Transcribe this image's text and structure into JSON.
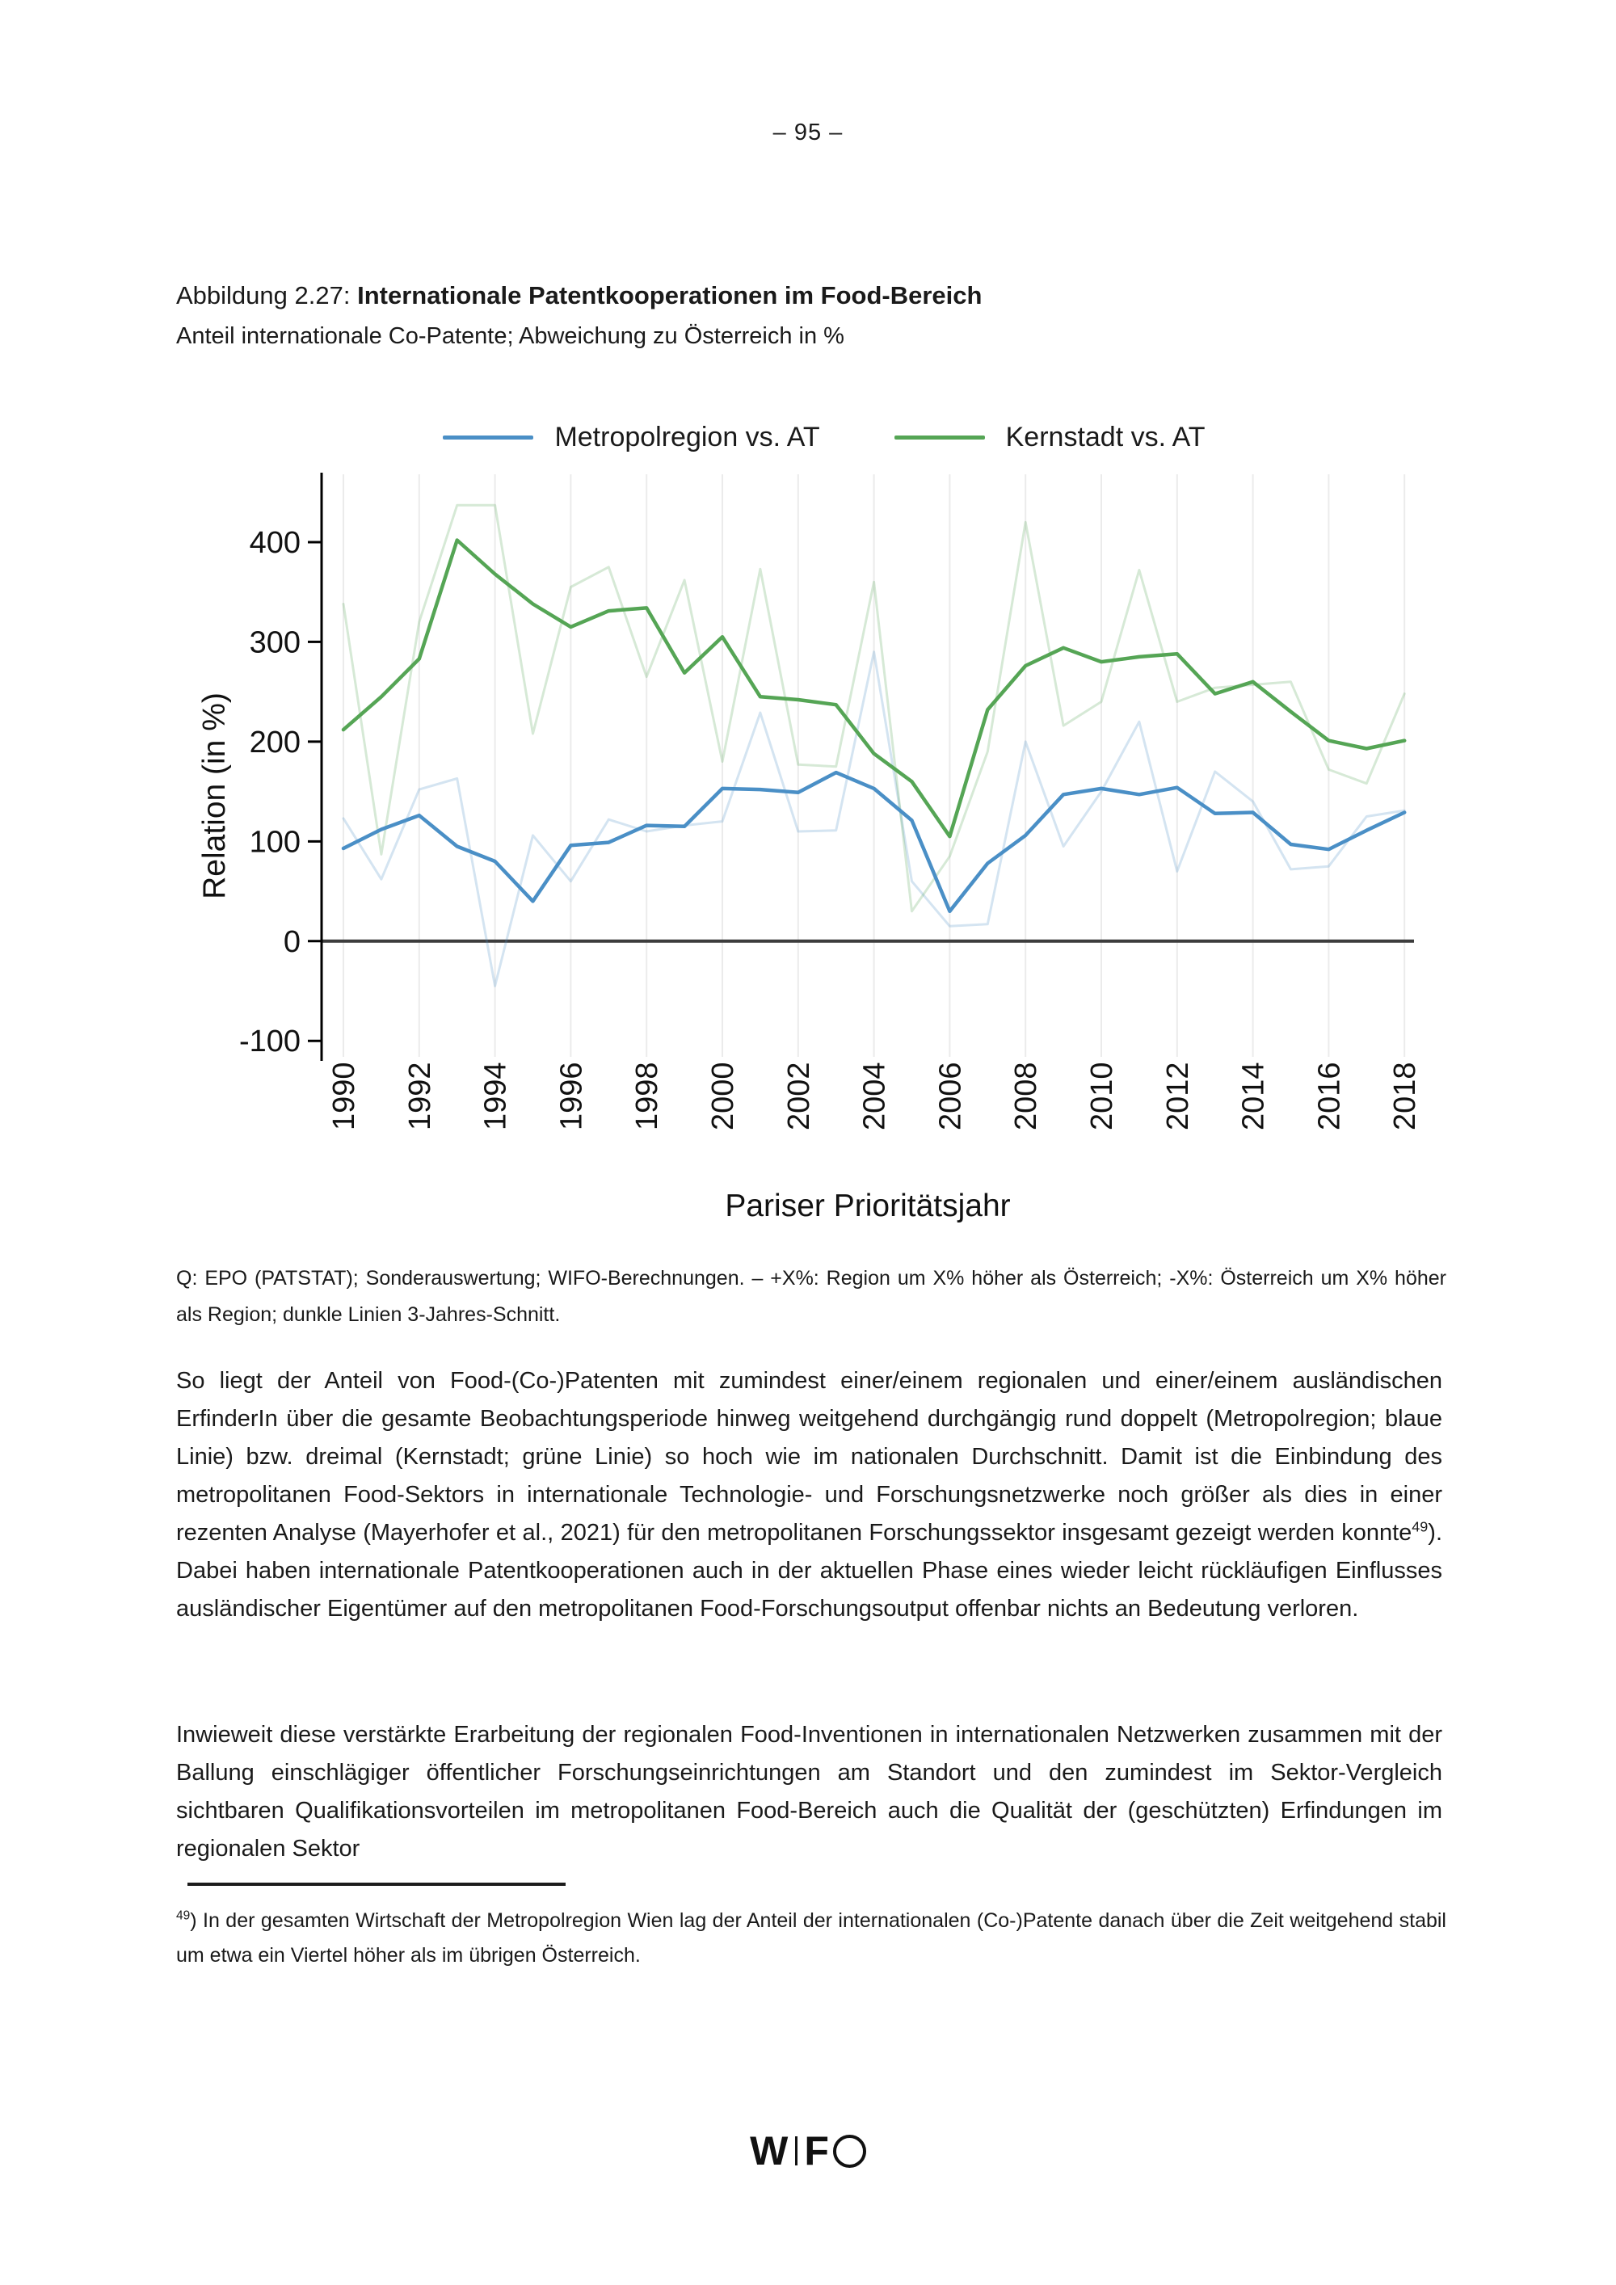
{
  "page": {
    "number_label": "– 95 –"
  },
  "figure": {
    "caption_prefix": "Abbildung 2.27: ",
    "caption_bold": "Internationale Patentkooperationen im Food-Bereich",
    "subtitle": "Anteil internationale Co-Patente; Abweichung zu Österreich in %",
    "source_note": "Q: EPO (PATSTAT); Sonderauswertung; WIFO-Berechnungen. –  +X%: Region um X% höher als Österreich; -X%: Österreich um X% höher als Region; dunkle Linien 3-Jahres-Schnitt."
  },
  "chart_data": {
    "type": "line",
    "title": "",
    "xlabel": "Pariser Prioritätsjahr",
    "ylabel": "Relation (in %)",
    "x": [
      1990,
      1991,
      1992,
      1993,
      1994,
      1995,
      1996,
      1997,
      1998,
      1999,
      2000,
      2001,
      2002,
      2003,
      2004,
      2005,
      2006,
      2007,
      2008,
      2009,
      2010,
      2011,
      2012,
      2013,
      2014,
      2015,
      2016,
      2017,
      2018
    ],
    "x_tick_labels": [
      "1990",
      "1992",
      "1994",
      "1996",
      "1998",
      "2000",
      "2002",
      "2004",
      "2006",
      "2008",
      "2010",
      "2012",
      "2014",
      "2016",
      "2018"
    ],
    "yticks": [
      -100,
      0,
      100,
      200,
      300,
      400
    ],
    "ylim": [
      -116,
      468
    ],
    "grid": "vertical-light",
    "legend_position": "top",
    "colors": {
      "metropolregion": "#4a8fc6",
      "kernstadt": "#55a555",
      "gridline": "#ebebeb",
      "zero_line": "#3c3c3c",
      "axis": "#000000"
    },
    "legend": [
      {
        "label": "Metropolregion vs. AT",
        "color": "#4a8fc6"
      },
      {
        "label": "Kernstadt vs. AT",
        "color": "#55a555"
      }
    ],
    "series": [
      {
        "name": "Metropolregion vs. AT (jährlich)",
        "role": "annual",
        "color": "#4a8fc6",
        "opacity": 0.24,
        "values": [
          123,
          62,
          152,
          163,
          -45,
          106,
          60,
          122,
          110,
          116,
          120,
          229,
          110,
          111,
          290,
          60,
          15,
          17,
          200,
          95,
          150,
          220,
          70,
          170,
          140,
          72,
          75,
          125,
          131
        ]
      },
      {
        "name": "Kernstadt vs. AT (jährlich)",
        "role": "annual",
        "color": "#55a555",
        "opacity": 0.24,
        "values": [
          338,
          87,
          320,
          437,
          437,
          208,
          355,
          375,
          265,
          362,
          180,
          373,
          177,
          175,
          360,
          30,
          85,
          190,
          420,
          216,
          240,
          372,
          240,
          254,
          257,
          260,
          172,
          158,
          248
        ]
      },
      {
        "name": "Metropolregion vs. AT (3-Jahres-Schnitt)",
        "role": "smoothed",
        "color": "#4a8fc6",
        "opacity": 1,
        "values": [
          93,
          112,
          126,
          95,
          80,
          40,
          96,
          99,
          116,
          115,
          153,
          152,
          149,
          169,
          153,
          121,
          30,
          78,
          106,
          147,
          153,
          147,
          154,
          128,
          129,
          97,
          92,
          111,
          129
        ]
      },
      {
        "name": "Kernstadt vs. AT (3-Jahres-Schnitt)",
        "role": "smoothed",
        "color": "#55a555",
        "opacity": 1,
        "values": [
          212,
          245,
          283,
          402,
          368,
          338,
          315,
          331,
          334,
          269,
          305,
          245,
          242,
          237,
          188,
          160,
          105,
          232,
          276,
          294,
          280,
          285,
          288,
          248,
          260,
          230,
          201,
          193,
          201
        ]
      }
    ]
  },
  "body": {
    "p1_part1": "So liegt der Anteil von Food-(Co-)Patenten mit zumindest einer/einem regionalen und einer/einem ausländischen ErfinderIn über die gesamte Beobachtungsperiode hinweg weitgehend durchgängig rund doppelt (Metropolregion; blaue Linie) bzw. dreimal (Kernstadt; grüne Linie) so hoch wie im nationalen Durchschnitt. Damit ist die Einbindung des metropolitanen Food-Sektors in internationale Technologie- und Forschungsnetzwerke noch größer als dies in einer rezenten Analyse (Mayerhofer et al., 2021) für den metropolitanen Forschungssektor insgesamt gezeigt werden konnte",
    "p1_ref": "49",
    "p1_part2": "). Dabei haben internationale Patentkooperationen auch in der aktuellen Phase eines wieder leicht rückläufigen Einflusses ausländischer Eigentümer auf den metropolitanen Food-Forschungsoutput offenbar nichts an Bedeutung verloren.",
    "p2": "Inwieweit diese verstärkte Erarbeitung der regionalen Food-Inventionen in internationalen Netzwerken zusammen mit der Ballung einschlägiger öffentlicher Forschungseinrichtungen am Standort und den zumindest im Sektor-Vergleich sichtbaren Qualifikationsvorteilen im metropolitanen Food-Bereich auch die Qualität der (geschützten) Erfindungen im regionalen Sektor"
  },
  "footnote": {
    "marker": "49",
    "text": ")  In der gesamten Wirtschaft der Metropolregion Wien lag der Anteil der internationalen (Co-)Patente danach über die Zeit weitgehend stabil um etwa ein Viertel höher als im übrigen Österreich."
  },
  "logo": {
    "w": "W",
    "f": "F"
  }
}
